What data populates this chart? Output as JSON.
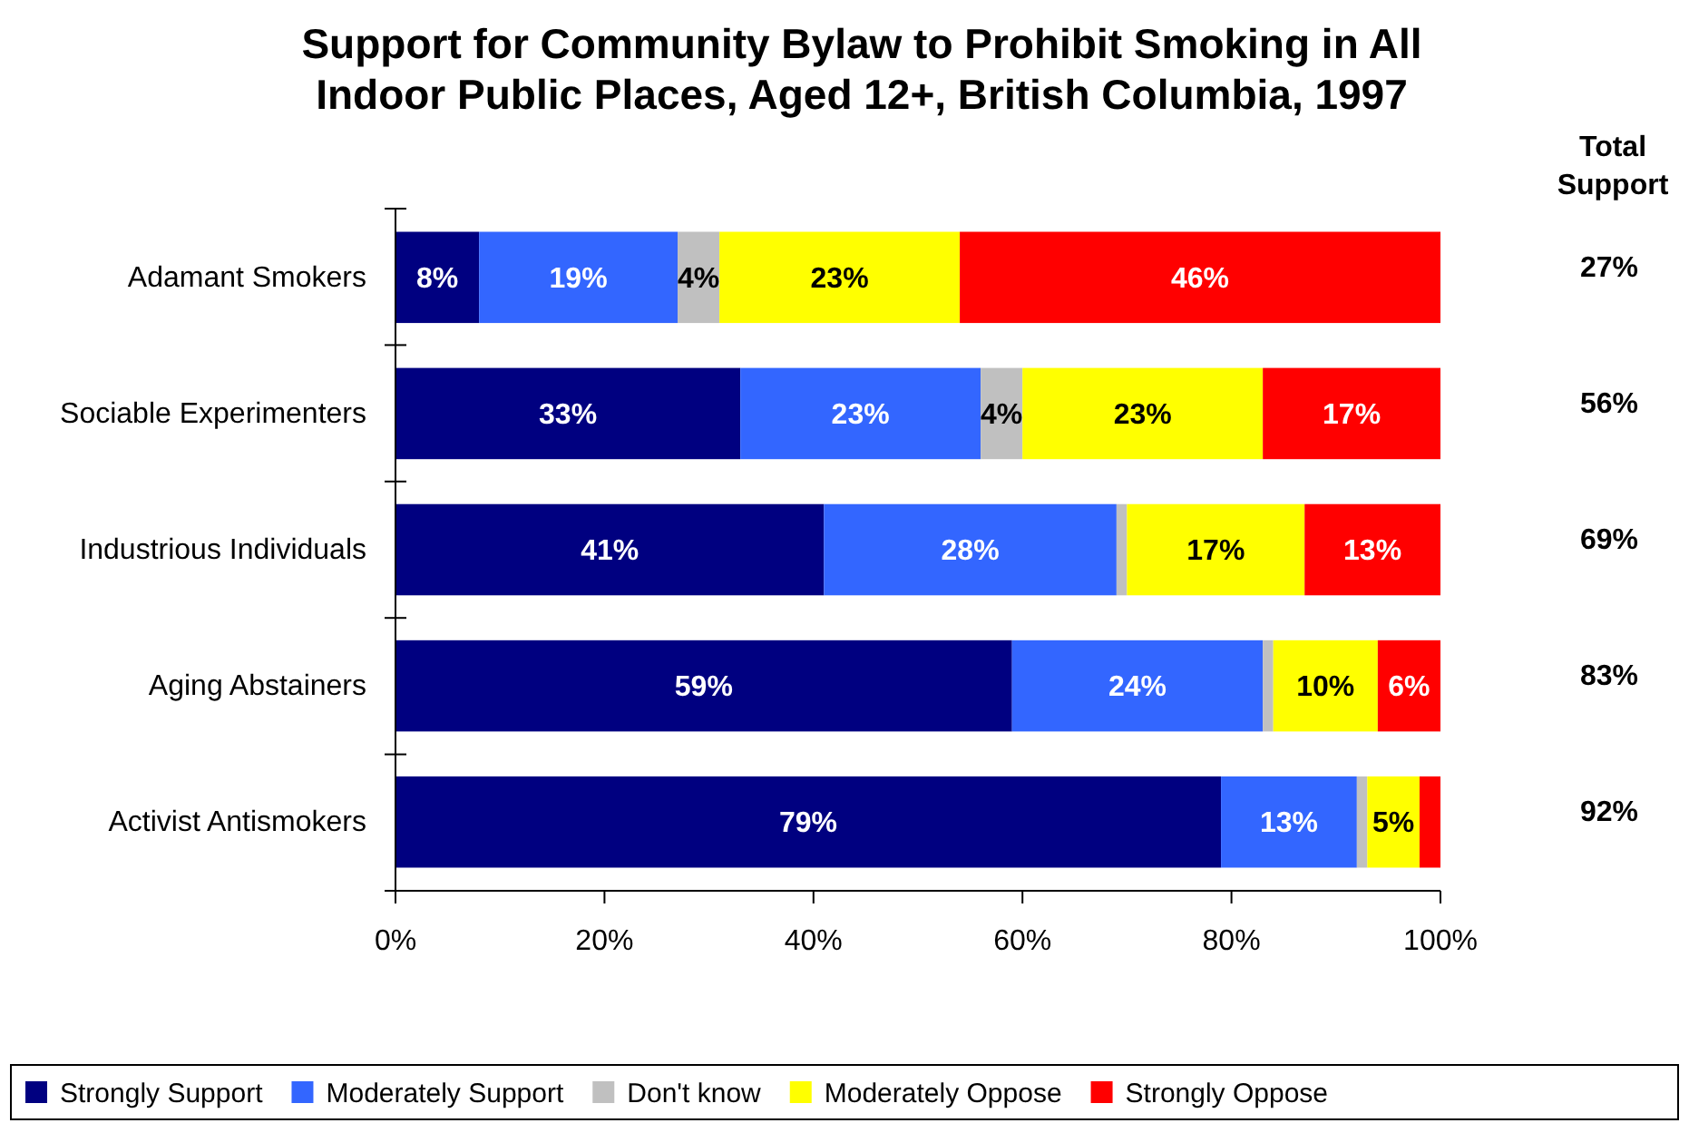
{
  "chart_data": {
    "type": "bar",
    "orientation": "horizontal",
    "stacked": true,
    "title": "Support for Community Bylaw to Prohibit Smoking in All Indoor Public Places, Aged 12+, British Columbia, 1997",
    "categories": [
      "Adamant Smokers",
      "Sociable Experimenters",
      "Industrious Individuals",
      "Aging Abstainers",
      "Activist Antismokers"
    ],
    "series": [
      {
        "name": "Strongly Support",
        "color": "#000080",
        "values": [
          8,
          33,
          41,
          59,
          79
        ],
        "value_labels": [
          "8%",
          "33%",
          "41%",
          "59%",
          "79%"
        ]
      },
      {
        "name": "Moderately Support",
        "color": "#3366ff",
        "values": [
          19,
          23,
          28,
          24,
          13
        ],
        "value_labels": [
          "19%",
          "23%",
          "28%",
          "24%",
          "13%"
        ]
      },
      {
        "name": "Don't know",
        "color": "#c0c0c0",
        "values": [
          4,
          4,
          1,
          1,
          1
        ],
        "value_labels": [
          "4%",
          "4%",
          null,
          null,
          null
        ]
      },
      {
        "name": "Moderately Oppose",
        "color": "#ffff00",
        "values": [
          23,
          23,
          17,
          10,
          5
        ],
        "value_labels": [
          "23%",
          "23%",
          "17%",
          "10%",
          "5%"
        ]
      },
      {
        "name": "Strongly Oppose",
        "color": "#ff0000",
        "values": [
          46,
          17,
          13,
          6,
          2
        ],
        "value_labels": [
          "46%",
          "17%",
          "13%",
          "6%",
          null
        ]
      }
    ],
    "xlim": [
      0,
      100
    ],
    "xticks": [
      {
        "value": 0,
        "label": "0%"
      },
      {
        "value": 20,
        "label": "20%"
      },
      {
        "value": 40,
        "label": "40%"
      },
      {
        "value": 60,
        "label": "60%"
      },
      {
        "value": 80,
        "label": "80%"
      },
      {
        "value": 100,
        "label": "100%"
      }
    ],
    "annotations": [
      "Total Support",
      "27%",
      "56%",
      "69%",
      "83%",
      "92%"
    ],
    "legend": "bottom",
    "grid": false
  }
}
